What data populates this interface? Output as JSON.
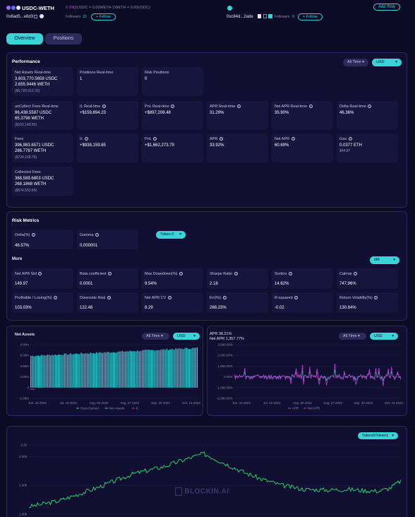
{
  "header": {
    "pair": "USDC-WETH",
    "fee_badge": "0.3%",
    "rate_text": "(1USDC = 0.00WETH   1WETH = 0.00USDC)",
    "owner_address": "0x8ad5...e8d3",
    "followers_label": "Followers",
    "followers_count": "13",
    "follow_label": "+ Follow",
    "owner2_address": "0xc84d...2ade",
    "followers2_label": "Followers",
    "followers2_count": "0",
    "follow2_label": "+ Follow",
    "add_risk_label": "Add Risk"
  },
  "tabs": [
    "Overview",
    "Positions"
  ],
  "performance": {
    "title": "Performance",
    "range_select": "All Time",
    "currency_select": "USD",
    "cards": [
      {
        "label": "Net Assets Real-time",
        "lines": [
          "3,603,770.5658 USDC",
          "2,655.9446 WETH"
        ],
        "sub": "($6,720,012.31)"
      },
      {
        "label": "Positions Real-time",
        "lines": [
          "1"
        ],
        "sub": ""
      },
      {
        "label": "Risk Positions",
        "lines": [
          "0"
        ],
        "sub": ""
      },
      {
        "label": "unCollect Fees Real-time",
        "lines": [
          "86,438.5587 USDC",
          "65.3798 WETH"
        ],
        "sub": "($163,149.55)"
      },
      {
        "label": "IL Real-time",
        "lines": [
          "+$159,894.23"
        ],
        "sub": "",
        "color": "green"
      },
      {
        "label": "PnL Real-time",
        "lines": [
          "+$897,208.48"
        ],
        "sub": "",
        "color": "green"
      },
      {
        "label": "APR Real-time",
        "lines": [
          "31.29%"
        ],
        "sub": "",
        "color": "green"
      },
      {
        "label": "Net APR Real-time",
        "lines": [
          "35.90%"
        ],
        "sub": "",
        "color": "green"
      },
      {
        "label": "Delta Real-time",
        "lines": [
          "46.36%"
        ],
        "sub": "",
        "color": "green"
      },
      {
        "label": "Fees",
        "lines": [
          "396,983.6571 USDC",
          "286.7787 WETH"
        ],
        "sub": "($724,168.76)"
      },
      {
        "label": "IL",
        "lines": [
          "+$938,159.85"
        ],
        "sub": "",
        "color": "green"
      },
      {
        "label": "PnL",
        "lines": [
          "+$1,662,273.79"
        ],
        "sub": "",
        "color": "green"
      },
      {
        "label": "APR",
        "lines": [
          "33.92%"
        ],
        "sub": "",
        "color": "green"
      },
      {
        "label": "Net APR",
        "lines": [
          "60.69%"
        ],
        "sub": "",
        "color": "green"
      },
      {
        "label": "Gas",
        "lines": [
          "0.0377 ETH"
        ],
        "sub": "$44.87"
      },
      {
        "label": "Collected Fees",
        "lines": [
          "368,589.6803 USDC",
          "268.1868 WETH"
        ],
        "sub": "($574,553.84)"
      }
    ]
  },
  "risk": {
    "title": "Risk Metrics",
    "token_select": "Token 0",
    "more_label": "More",
    "period_select": "6M",
    "top_cards": [
      {
        "label": "Delta(%)",
        "value": "46.57%"
      },
      {
        "label": "Gamma",
        "value": "0.000001"
      }
    ],
    "cards": [
      {
        "label": "Net APR Std",
        "value": "149.97"
      },
      {
        "label": "Beta coefficient",
        "value": "0.0001"
      },
      {
        "label": "Max Drawdown(%)",
        "value": "9.54%"
      },
      {
        "label": "Sharpe Ratio",
        "value": "2.18"
      },
      {
        "label": "Sortino",
        "value": "14.62%"
      },
      {
        "label": "Calmar",
        "value": "747.96%"
      },
      {
        "label": "Profitable / Losing(%)",
        "value": "103.03%"
      },
      {
        "label": "Downside Risk",
        "value": "122.48"
      },
      {
        "label": "Net APR CV",
        "value": "8.29"
      },
      {
        "label": "Eπ(%)",
        "value": "268.23%"
      },
      {
        "label": "R-squared",
        "value": "-0.02"
      },
      {
        "label": "Return Volatility(%)",
        "value": "130.84%"
      }
    ]
  },
  "net_assets_chart": {
    "title": "Net Assets",
    "range_select": "All Time",
    "currency_select": "USD",
    "legend": [
      "Fees Earned",
      "Net Assets",
      "IL"
    ]
  },
  "apr_chart": {
    "apr_label": "APR",
    "apr_value": "38.21%",
    "net_apr_label": "Net APR",
    "net_apr_value": "1,357.77%",
    "range_select": "All Time",
    "currency_select": "USD",
    "legend": [
      "APR",
      "Net APR"
    ]
  },
  "price_chart": {
    "token_select": "Token0/Token1",
    "watermark": "BLOCKIN.AI"
  },
  "colors": {
    "accent": "#3ad3d8",
    "positive": "#29d38e",
    "magenta": "#c93bd9",
    "bg": "#0c0b26"
  },
  "chart_data": [
    {
      "type": "bar",
      "title": "Net Assets",
      "x_ticks": [
        "Jun. 16 2022",
        "Jul. 10 2022",
        "Aug. 03 2022",
        "Aug. 27 2022",
        "Sep. 20 2022",
        "Oct. 14 2022"
      ],
      "y_ticks": [
        "8.00m",
        "6.00m",
        "4.00m",
        "2.00m",
        "0",
        "-2.00m"
      ],
      "ylim": [
        -2000000,
        8000000
      ],
      "series": [
        {
          "name": "Net Assets",
          "values_start": 5900000,
          "values_end": 7400000
        }
      ],
      "legend": [
        "Fees Earned",
        "Net Assets",
        "IL"
      ]
    },
    {
      "type": "line",
      "y_ticks": [
        "3,000.00%",
        "2,000.00%",
        "1,000.00%",
        "0.00%",
        "-1,000.00%",
        "-2,000.00%"
      ],
      "x_ticks": [
        "Jun. 16 2022",
        "Jul. 10 2022",
        "Aug. 03 2022",
        "Aug. 27 2022",
        "Sep. 20 2022",
        "Oct. 14 2022"
      ],
      "ylim": [
        -2000,
        3000
      ],
      "legend": [
        "APR",
        "Net APR"
      ]
    },
    {
      "type": "line",
      "y_ticks": [
        "2.2k",
        "2.00k",
        "1.50k",
        "1.00k"
      ],
      "ylim": [
        1000,
        2200
      ]
    }
  ]
}
